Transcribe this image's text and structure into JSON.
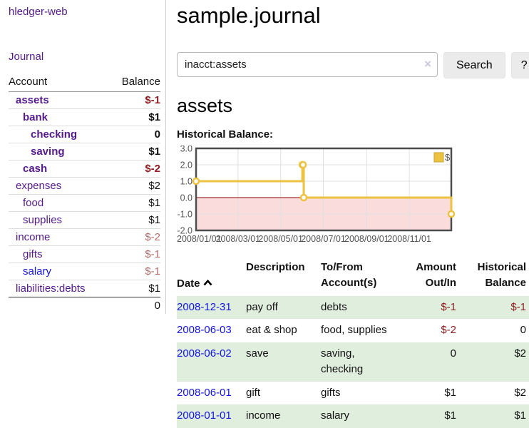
{
  "brand": "hledger-web",
  "nav": {
    "journal": "Journal"
  },
  "sidebar": {
    "col_account": "Account",
    "col_balance": "Balance",
    "accounts": [
      {
        "name": "assets",
        "balance": "$-1"
      },
      {
        "name": "bank",
        "balance": "$1"
      },
      {
        "name": "checking",
        "balance": "0"
      },
      {
        "name": "saving",
        "balance": "$1"
      },
      {
        "name": "cash",
        "balance": "$-2"
      },
      {
        "name": "expenses",
        "balance": "$2"
      },
      {
        "name": "food",
        "balance": "$1"
      },
      {
        "name": "supplies",
        "balance": "$1"
      },
      {
        "name": "income",
        "balance": "$-2"
      },
      {
        "name": "gifts",
        "balance": "$-1"
      },
      {
        "name": "salary",
        "balance": "$-1"
      },
      {
        "name": "liabilities:debts",
        "balance": "$1"
      }
    ],
    "total": "0"
  },
  "header": {
    "title": "sample.journal"
  },
  "search": {
    "query": "inacct:assets",
    "clear": "×",
    "search_button": "Search",
    "help_button": "?"
  },
  "account": {
    "heading": "assets",
    "chart_title": "Historical Balance:"
  },
  "chart_data": {
    "type": "line",
    "step": true,
    "title": "Historical Balance:",
    "series": [
      {
        "name": "$",
        "color": "#edc240",
        "points": [
          [
            "2008-01-01",
            1
          ],
          [
            "2008-06-01",
            2
          ],
          [
            "2008-06-02",
            2
          ],
          [
            "2008-06-03",
            0
          ],
          [
            "2008-12-31",
            -1
          ]
        ]
      }
    ],
    "xrange": [
      "2008-01-01",
      "2008-12-31"
    ],
    "ylim": [
      -2,
      3
    ],
    "yticks": [
      "3.0",
      "2.0",
      "1.0",
      "0.0",
      "-1.0",
      "-2.0"
    ],
    "xticks": [
      "2008/01/01",
      "2008/03/01",
      "2008/05/01",
      "2008/07/01",
      "2008/09/01",
      "2008/11/01"
    ],
    "grid": true,
    "legend_position": "top-right",
    "colors": {
      "negative_region": "#fbdcdc",
      "zero_line": "#8b0000",
      "grid": "#e0e0e0",
      "border": "#4d4d4d",
      "tick_text": "#545454"
    }
  },
  "register": {
    "headers": {
      "date": "Date",
      "description": "Description",
      "accounts": "To/From\nAccount(s)",
      "amount": "Amount\nOut/In",
      "balance": "Historical\nBalance"
    },
    "rows": [
      {
        "date": "2008-12-31",
        "description": "pay off",
        "accounts": "debts",
        "amount": "$-1",
        "balance": "$-1"
      },
      {
        "date": "2008-06-03",
        "description": "eat & shop",
        "accounts": "food, supplies",
        "amount": "$-2",
        "balance": "0"
      },
      {
        "date": "2008-06-02",
        "description": "save",
        "accounts": "saving, checking",
        "amount": "0",
        "balance": "$2"
      },
      {
        "date": "2008-06-01",
        "description": "gift",
        "accounts": "gifts",
        "amount": "$1",
        "balance": "$2"
      },
      {
        "date": "2008-01-01",
        "description": "income",
        "accounts": "salary",
        "amount": "$1",
        "balance": "$1"
      }
    ]
  },
  "colors": {
    "accent_purple": "#551a8b",
    "link_blue": "#1414e0",
    "negative": "#8f1d21",
    "negative_muted": "#b36b6b",
    "row_green": "#e0eedd",
    "chart_yellow": "#edc240"
  }
}
